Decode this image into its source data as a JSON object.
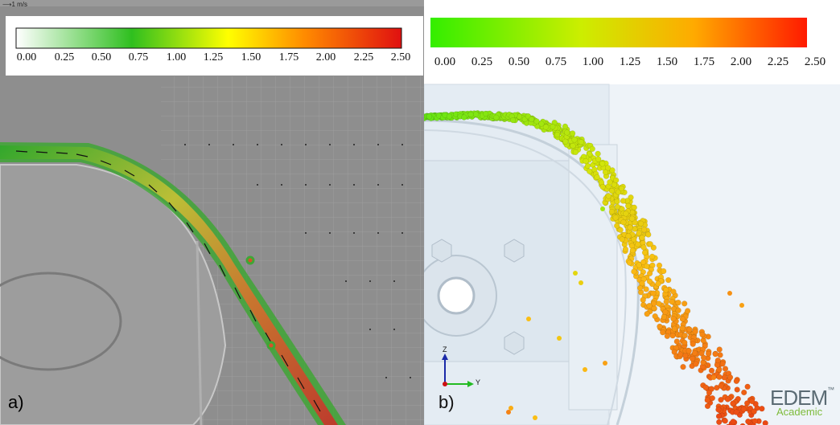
{
  "panel_a": {
    "label": "a)",
    "reference_vector": "⟶1 m/s",
    "colorbar_ticks": [
      "0.00",
      "0.25",
      "0.50",
      "0.75",
      "1.00",
      "1.25",
      "1.50",
      "1.75",
      "2.00",
      "2.25",
      "2.50"
    ],
    "colorbar_colors": [
      "#ffffff",
      "#2fbf1f",
      "#ffff00",
      "#ff8a00",
      "#e01010"
    ]
  },
  "panel_b": {
    "label": "b)",
    "colorbar_ticks": [
      "0.00",
      "0.25",
      "0.50",
      "0.75",
      "1.00",
      "1.25",
      "1.50",
      "1.75",
      "2.00",
      "2.25",
      "2.50"
    ],
    "colorbar_colors": [
      "#33ee00",
      "#ccee00",
      "#ffaa00",
      "#ff1a00"
    ],
    "axis_z": "Z",
    "axis_y": "Y",
    "logo_text": "EDEM",
    "logo_tm": "™",
    "logo_sub": "Academic"
  }
}
